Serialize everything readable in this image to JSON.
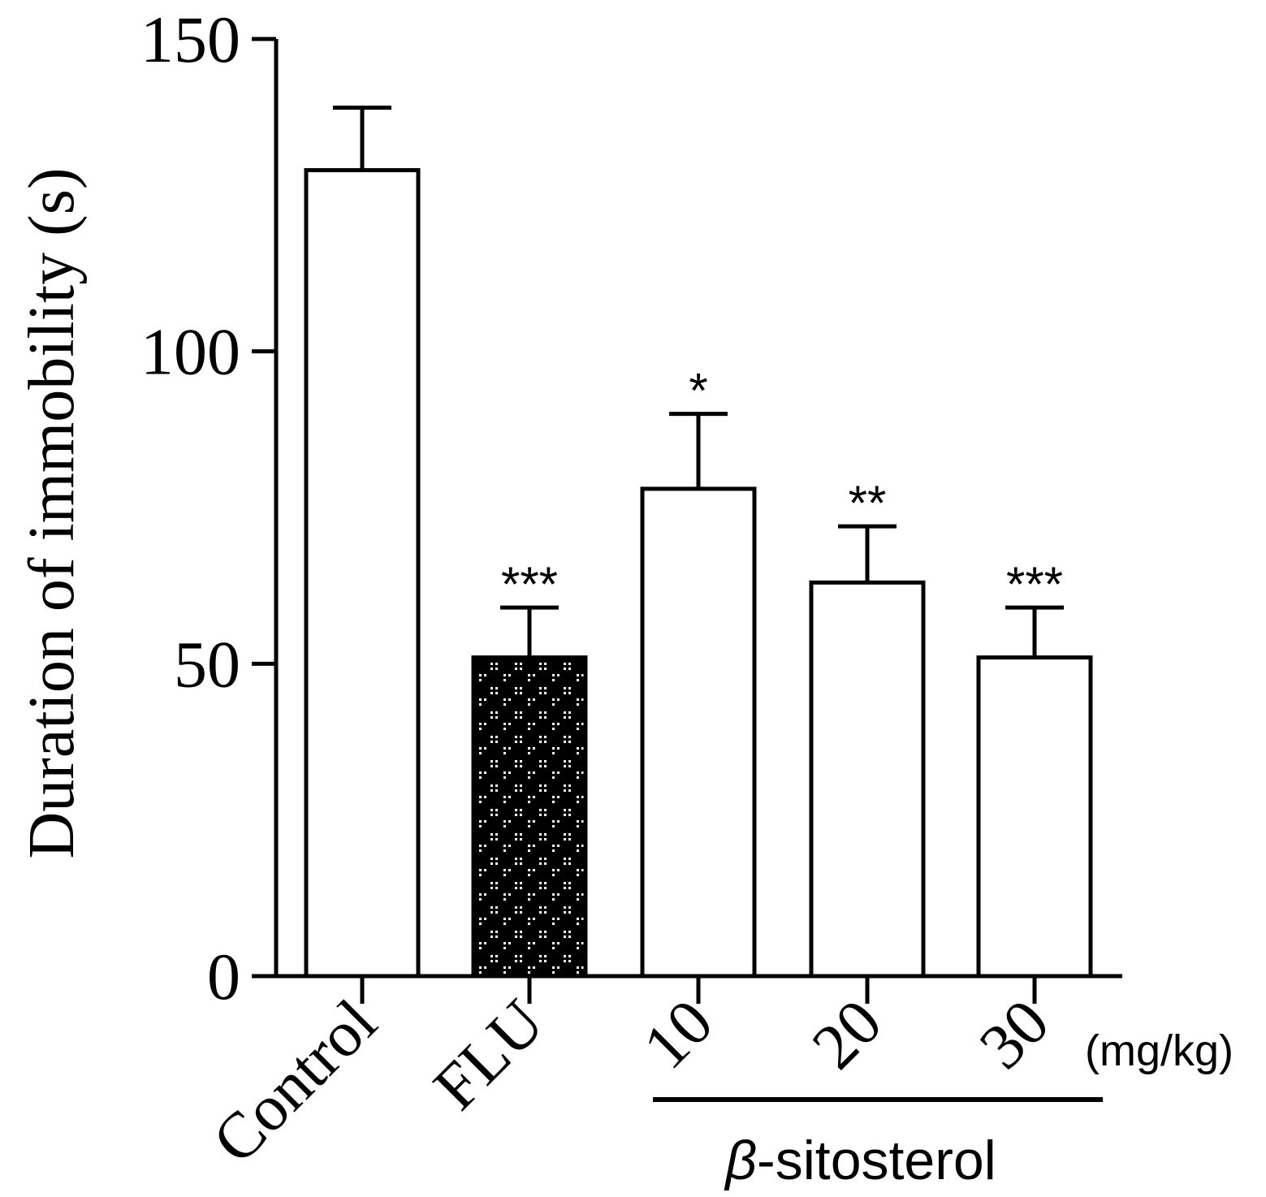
{
  "chart_data": {
    "type": "bar",
    "categories": [
      "Control",
      "FLU",
      "10",
      "20",
      "30"
    ],
    "values": [
      129,
      51,
      78,
      63,
      51
    ],
    "errors": [
      10,
      8,
      12,
      9,
      8
    ],
    "significance": [
      "",
      "***",
      "*",
      "**",
      "***"
    ],
    "fills": [
      "white",
      "dotted-black",
      "white",
      "white",
      "white"
    ],
    "ylabel": "Duration of immobility (s)",
    "yticks": [
      0,
      50,
      100,
      150
    ],
    "ylim": [
      0,
      150
    ],
    "unit_label": "(mg/kg)",
    "group_label": {
      "greek": "β",
      "text": "-sitosterol",
      "categories": [
        "10",
        "20",
        "30"
      ]
    },
    "grid": false,
    "legend": "none"
  }
}
